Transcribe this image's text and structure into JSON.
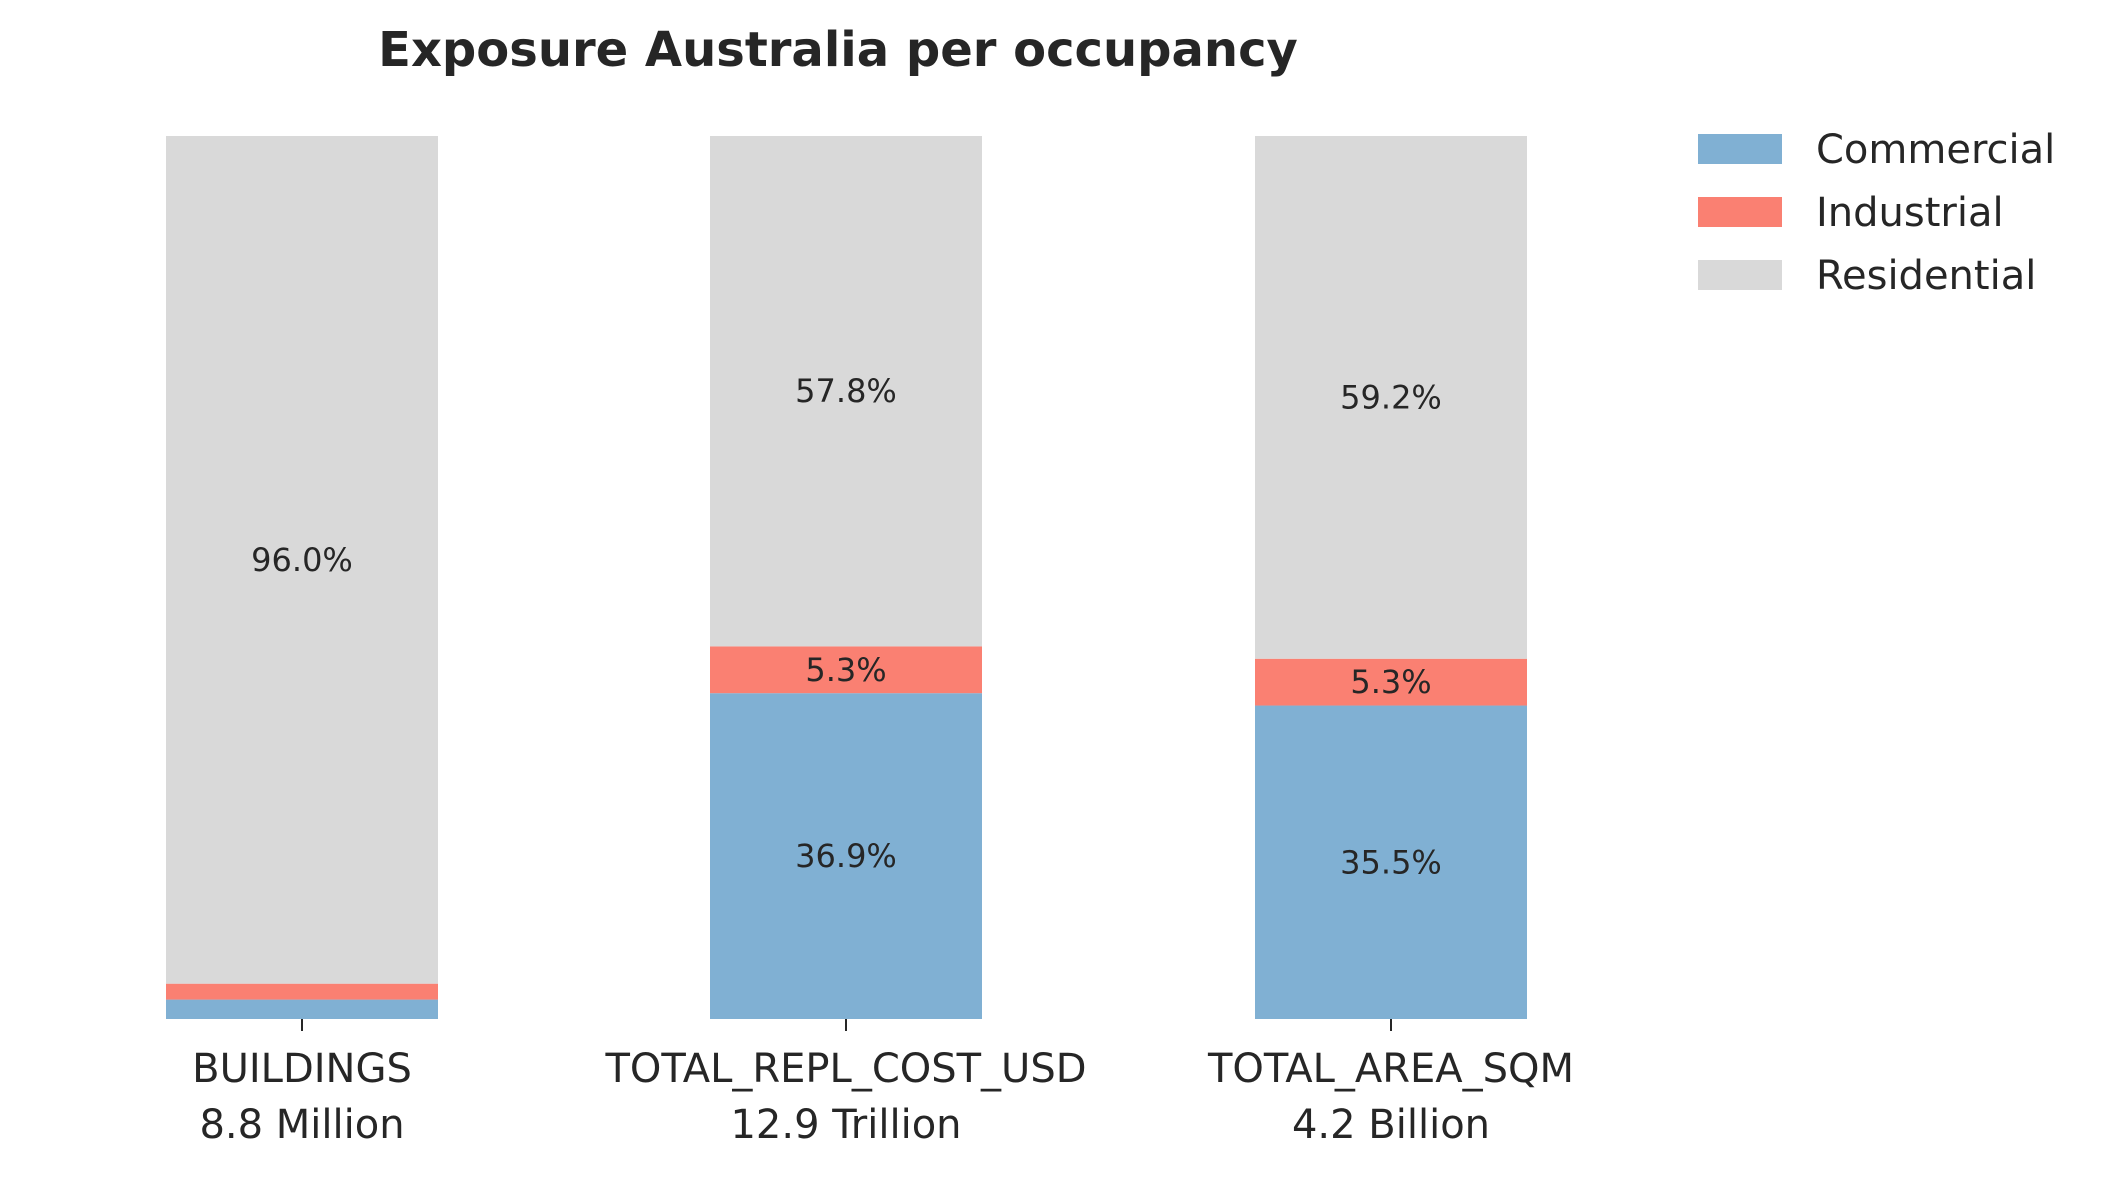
{
  "chart_data": {
    "type": "bar",
    "stacked": true,
    "normalized_percent": true,
    "title": "Exposure Australia per occupancy",
    "categories": [
      {
        "name": "BUILDINGS",
        "total": "8.8 Million"
      },
      {
        "name": "TOTAL_REPL_COST_USD",
        "total": "12.9 Trillion"
      },
      {
        "name": "TOTAL_AREA_SQM",
        "total": "4.2 Billion"
      }
    ],
    "series": [
      {
        "name": "Commercial",
        "color": "#80b0d3",
        "values": [
          2.2,
          36.9,
          35.5
        ],
        "labels": [
          "",
          "36.9%",
          "35.5%"
        ]
      },
      {
        "name": "Industrial",
        "color": "#fa8072",
        "values": [
          1.8,
          5.3,
          5.3
        ],
        "labels": [
          "",
          "5.3%",
          "5.3%"
        ]
      },
      {
        "name": "Residential",
        "color": "#d9d9d9",
        "values": [
          96.0,
          57.8,
          59.2
        ],
        "labels": [
          "96.0%",
          "57.8%",
          "59.2%"
        ]
      }
    ],
    "ylim": [
      0,
      100
    ],
    "xlabel": "",
    "ylabel": "",
    "grid": false,
    "legend_position": "top-right"
  }
}
